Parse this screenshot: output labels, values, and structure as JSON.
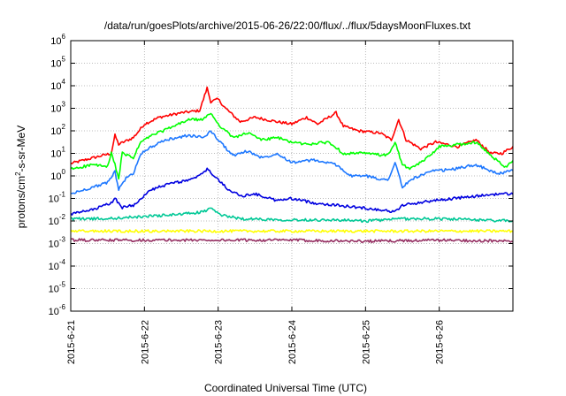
{
  "chart_data": {
    "type": "line",
    "title": "/data/run/goesPlots/archive/2015-06-26/22:00/flux/../flux/5daysMoonFluxes.txt",
    "xlabel": "Coordinated Universal Time (UTC)",
    "ylabel": {
      "pre": "protons/cm",
      "sup": "2",
      "post": "-s-sr-MeV"
    },
    "xscale": "time (days)",
    "xlim": [
      0,
      6.0
    ],
    "xticks": [
      {
        "value": 0,
        "label": "2015-6-21"
      },
      {
        "value": 1,
        "label": "2015-6-22"
      },
      {
        "value": 2,
        "label": "2015-6-23"
      },
      {
        "value": 3,
        "label": "2015-6-24"
      },
      {
        "value": 4,
        "label": "2015-6-25"
      },
      {
        "value": 5,
        "label": "2015-6-26"
      }
    ],
    "yscale": "log",
    "ylim_exponent": [
      -6,
      6
    ],
    "yticks": [
      {
        "base": "10",
        "exp": "6"
      },
      {
        "base": "10",
        "exp": "5"
      },
      {
        "base": "10",
        "exp": "4"
      },
      {
        "base": "10",
        "exp": "3"
      },
      {
        "base": "10",
        "exp": "2"
      },
      {
        "base": "10",
        "exp": "1"
      },
      {
        "base": "10",
        "exp": "0"
      },
      {
        "base": "10",
        "exp": "-1"
      },
      {
        "base": "10",
        "exp": "-2"
      },
      {
        "base": "10",
        "exp": "-3"
      },
      {
        "base": "10",
        "exp": "-4"
      },
      {
        "base": "10",
        "exp": "-5"
      },
      {
        "base": "10",
        "exp": "-6"
      }
    ],
    "grid": true,
    "series": [
      {
        "color": "#ff0000",
        "log10_points": [
          [
            0,
            0.55
          ],
          [
            0.3,
            0.8
          ],
          [
            0.55,
            1.0
          ],
          [
            0.6,
            1.8
          ],
          [
            0.65,
            1.4
          ],
          [
            0.85,
            1.7
          ],
          [
            1.0,
            2.3
          ],
          [
            1.2,
            2.6
          ],
          [
            1.5,
            2.8
          ],
          [
            1.75,
            2.9
          ],
          [
            1.85,
            3.9
          ],
          [
            1.9,
            3.3
          ],
          [
            2.0,
            3.4
          ],
          [
            2.1,
            3.0
          ],
          [
            2.3,
            2.4
          ],
          [
            2.5,
            2.6
          ],
          [
            2.8,
            2.4
          ],
          [
            3.0,
            2.3
          ],
          [
            3.2,
            2.6
          ],
          [
            3.35,
            2.3
          ],
          [
            3.5,
            2.6
          ],
          [
            3.6,
            2.8
          ],
          [
            3.7,
            2.2
          ],
          [
            3.9,
            2.0
          ],
          [
            4.2,
            1.9
          ],
          [
            4.35,
            1.6
          ],
          [
            4.45,
            2.5
          ],
          [
            4.55,
            1.6
          ],
          [
            4.75,
            1.2
          ],
          [
            4.95,
            1.5
          ],
          [
            5.25,
            1.3
          ],
          [
            5.5,
            1.6
          ],
          [
            5.7,
            1.0
          ],
          [
            5.85,
            1.0
          ],
          [
            6.0,
            1.3
          ]
        ]
      },
      {
        "color": "#00ff00",
        "log10_points": [
          [
            0,
            0.3
          ],
          [
            0.3,
            0.5
          ],
          [
            0.5,
            0.4
          ],
          [
            0.55,
            1.0
          ],
          [
            0.6,
            0.5
          ],
          [
            0.65,
            -0.1
          ],
          [
            0.7,
            1.0
          ],
          [
            0.85,
            0.8
          ],
          [
            0.95,
            1.5
          ],
          [
            1.1,
            1.8
          ],
          [
            1.4,
            2.2
          ],
          [
            1.6,
            2.5
          ],
          [
            1.8,
            2.5
          ],
          [
            1.9,
            2.8
          ],
          [
            2.0,
            2.3
          ],
          [
            2.2,
            1.7
          ],
          [
            2.4,
            1.9
          ],
          [
            2.6,
            1.6
          ],
          [
            2.8,
            1.7
          ],
          [
            3.0,
            1.5
          ],
          [
            3.2,
            1.4
          ],
          [
            3.5,
            1.5
          ],
          [
            3.7,
            1.0
          ],
          [
            4.0,
            1.0
          ],
          [
            4.3,
            0.9
          ],
          [
            4.4,
            1.5
          ],
          [
            4.5,
            0.5
          ],
          [
            4.6,
            0.3
          ],
          [
            4.8,
            0.7
          ],
          [
            5.0,
            1.3
          ],
          [
            5.3,
            1.4
          ],
          [
            5.5,
            1.5
          ],
          [
            5.7,
            0.9
          ],
          [
            5.9,
            0.4
          ],
          [
            6.0,
            0.7
          ]
        ]
      },
      {
        "color": "#1e78ff",
        "log10_points": [
          [
            0,
            -0.8
          ],
          [
            0.3,
            -0.5
          ],
          [
            0.5,
            -0.3
          ],
          [
            0.6,
            0.2
          ],
          [
            0.65,
            -0.6
          ],
          [
            0.75,
            -0.1
          ],
          [
            0.85,
            0.1
          ],
          [
            0.95,
            1.0
          ],
          [
            1.1,
            1.3
          ],
          [
            1.3,
            1.6
          ],
          [
            1.6,
            1.8
          ],
          [
            1.8,
            1.7
          ],
          [
            1.9,
            2.0
          ],
          [
            2.0,
            1.6
          ],
          [
            2.2,
            0.9
          ],
          [
            2.4,
            1.1
          ],
          [
            2.6,
            0.8
          ],
          [
            2.8,
            1.0
          ],
          [
            3.0,
            0.6
          ],
          [
            3.3,
            0.7
          ],
          [
            3.6,
            0.5
          ],
          [
            3.8,
            0.0
          ],
          [
            4.0,
            0.0
          ],
          [
            4.3,
            -0.2
          ],
          [
            4.4,
            0.6
          ],
          [
            4.5,
            -0.5
          ],
          [
            4.65,
            -0.1
          ],
          [
            4.9,
            0.2
          ],
          [
            5.2,
            0.3
          ],
          [
            5.5,
            0.5
          ],
          [
            5.7,
            0.2
          ],
          [
            5.85,
            0.1
          ],
          [
            6.0,
            0.25
          ]
        ]
      },
      {
        "color": "#0000e0",
        "log10_points": [
          [
            0,
            -1.7
          ],
          [
            0.3,
            -1.5
          ],
          [
            0.55,
            -1.2
          ],
          [
            0.6,
            -1.0
          ],
          [
            0.7,
            -1.4
          ],
          [
            0.85,
            -1.3
          ],
          [
            0.95,
            -1.0
          ],
          [
            1.1,
            -0.6
          ],
          [
            1.4,
            -0.3
          ],
          [
            1.6,
            -0.2
          ],
          [
            1.75,
            0.0
          ],
          [
            1.85,
            0.3
          ],
          [
            1.95,
            0.0
          ],
          [
            2.1,
            -0.5
          ],
          [
            2.3,
            -0.9
          ],
          [
            2.5,
            -0.8
          ],
          [
            2.8,
            -1.1
          ],
          [
            3.0,
            -1.0
          ],
          [
            3.3,
            -1.2
          ],
          [
            3.6,
            -1.3
          ],
          [
            3.9,
            -1.4
          ],
          [
            4.2,
            -1.5
          ],
          [
            4.4,
            -1.6
          ],
          [
            4.5,
            -1.3
          ],
          [
            4.7,
            -1.2
          ],
          [
            4.9,
            -1.1
          ],
          [
            5.2,
            -1.0
          ],
          [
            5.5,
            -0.9
          ],
          [
            5.8,
            -0.8
          ],
          [
            6.0,
            -0.8
          ]
        ]
      },
      {
        "color": "#00c896",
        "log10_points": [
          [
            0,
            -1.9
          ],
          [
            0.5,
            -1.9
          ],
          [
            1.0,
            -1.8
          ],
          [
            1.5,
            -1.7
          ],
          [
            1.8,
            -1.6
          ],
          [
            1.9,
            -1.4
          ],
          [
            2.0,
            -1.7
          ],
          [
            2.3,
            -1.9
          ],
          [
            3.0,
            -1.95
          ],
          [
            3.5,
            -1.95
          ],
          [
            4.0,
            -2.0
          ],
          [
            4.5,
            -1.9
          ],
          [
            5.0,
            -1.9
          ],
          [
            5.5,
            -1.95
          ],
          [
            6.0,
            -2.0
          ]
        ]
      },
      {
        "color": "#ffff00",
        "log10_points": [
          [
            0,
            -2.45
          ],
          [
            1.0,
            -2.45
          ],
          [
            2.0,
            -2.45
          ],
          [
            3.0,
            -2.45
          ],
          [
            4.0,
            -2.45
          ],
          [
            5.0,
            -2.45
          ],
          [
            6.0,
            -2.45
          ]
        ]
      },
      {
        "color": "#963264",
        "log10_points": [
          [
            0,
            -2.85
          ],
          [
            1.0,
            -2.85
          ],
          [
            2.0,
            -2.85
          ],
          [
            3.0,
            -2.85
          ],
          [
            4.0,
            -2.9
          ],
          [
            5.0,
            -2.85
          ],
          [
            6.0,
            -2.9
          ]
        ]
      }
    ]
  }
}
